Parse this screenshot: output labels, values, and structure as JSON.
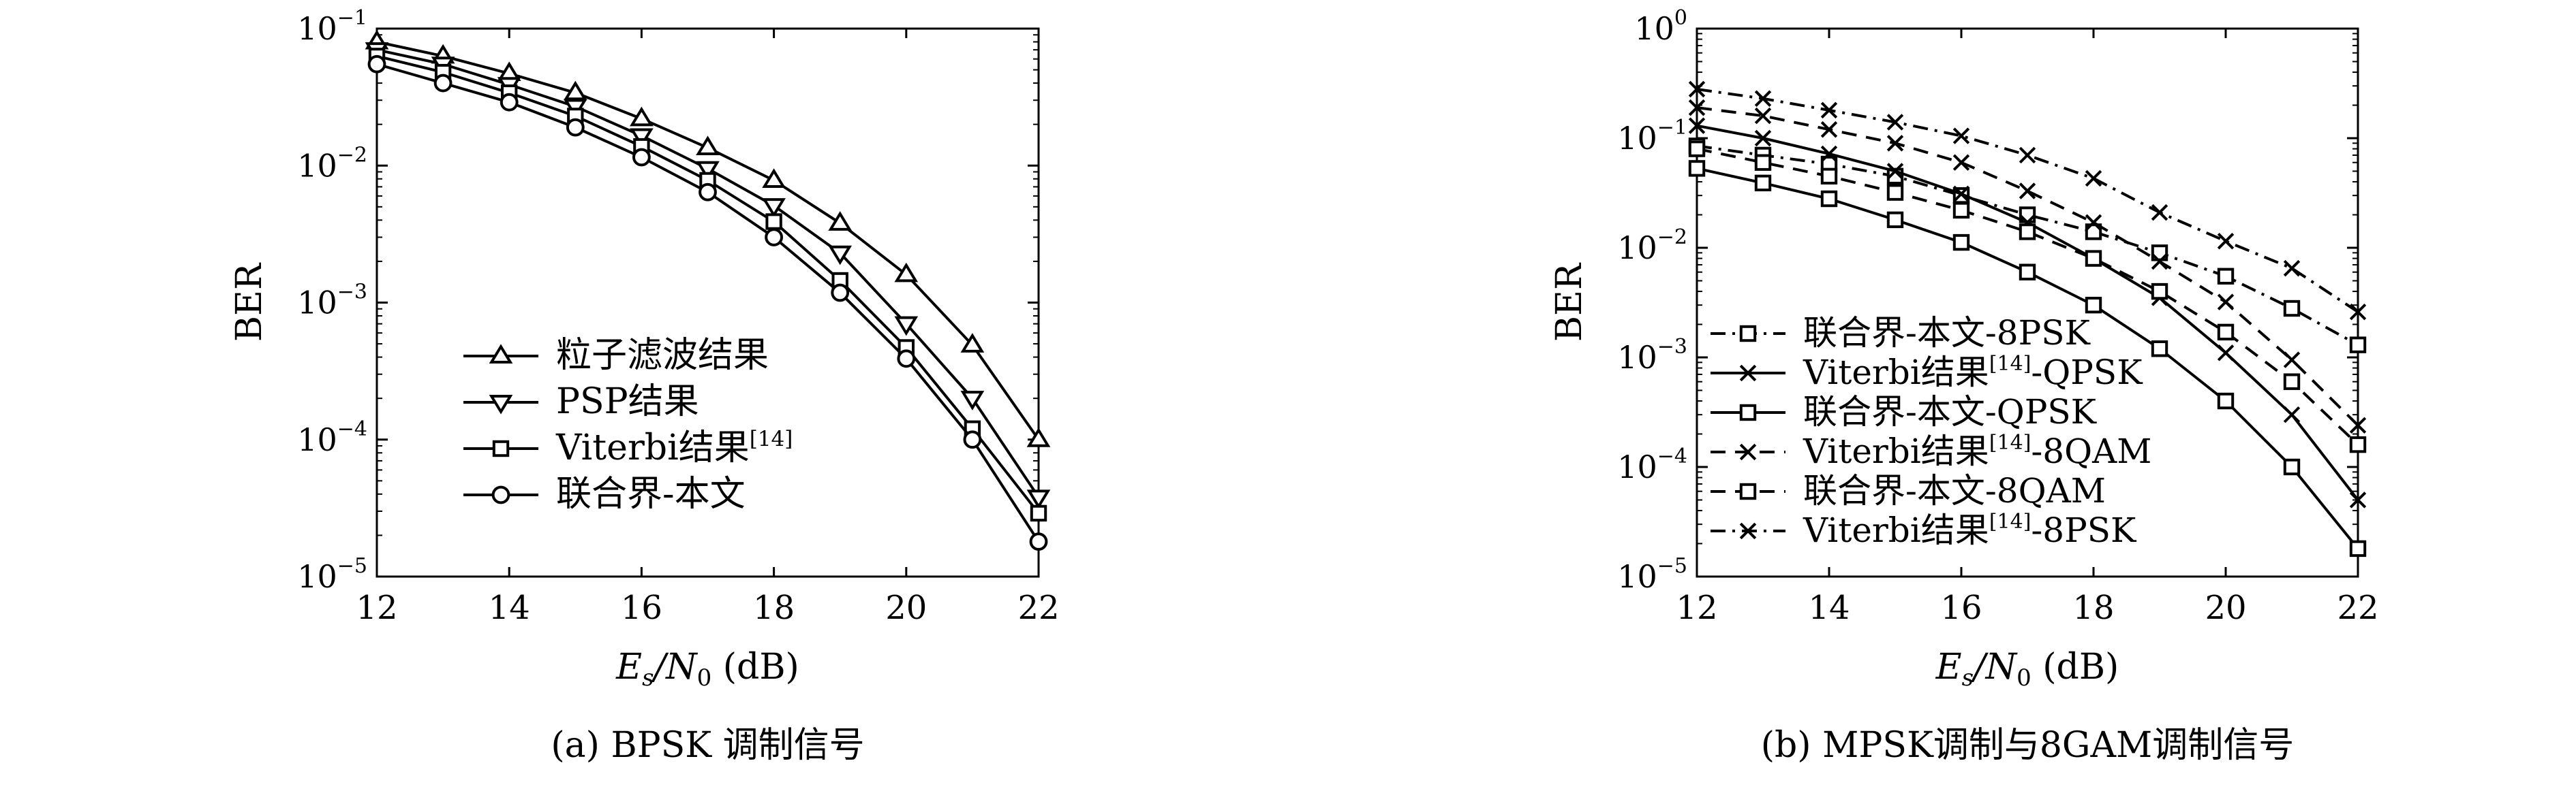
{
  "chart_data": [
    {
      "type": "line",
      "panel": "a",
      "caption": "(a) BPSK 调制信号",
      "xlabel_base": "E",
      "xlabel_sub1": "s",
      "xlabel_mid": "/N",
      "xlabel_sub2": "0",
      "xlabel_tail": " (dB)",
      "ylabel": "BER",
      "y_scale": "log",
      "xlim": [
        12,
        22
      ],
      "ylim": [
        1e-05,
        0.1
      ],
      "xticks": [
        12,
        14,
        16,
        18,
        20,
        22
      ],
      "yticks": [
        {
          "base": "10",
          "exp": "−1",
          "value": 0.1
        },
        {
          "base": "10",
          "exp": "−2",
          "value": 0.01
        },
        {
          "base": "10",
          "exp": "−3",
          "value": 0.001
        },
        {
          "base": "10",
          "exp": "−4",
          "value": 0.0001
        },
        {
          "base": "10",
          "exp": "−5",
          "value": 1e-05
        }
      ],
      "grid": false,
      "legend_position": "center",
      "x": [
        12,
        13,
        14,
        15,
        16,
        17,
        18,
        19,
        20,
        21,
        22
      ],
      "series": [
        {
          "name": "粒子滤波结果",
          "ref": "",
          "marker": "triangle-up",
          "dash": "solid",
          "values": [
            0.08,
            0.063,
            0.047,
            0.034,
            0.022,
            0.0135,
            0.0078,
            0.0038,
            0.0016,
            0.00049,
            0.0001
          ]
        },
        {
          "name": "PSP结果",
          "ref": "",
          "marker": "triangle-down",
          "dash": "solid",
          "values": [
            0.07,
            0.055,
            0.039,
            0.027,
            0.0165,
            0.0095,
            0.0051,
            0.0023,
            0.0007,
            0.0002,
            3.8e-05
          ]
        },
        {
          "name": "Viterbi结果",
          "ref": "[14]",
          "marker": "square",
          "dash": "solid",
          "values": [
            0.063,
            0.048,
            0.034,
            0.023,
            0.0138,
            0.0078,
            0.0039,
            0.00145,
            0.00047,
            0.00012,
            2.9e-05
          ]
        },
        {
          "name": "联合界-本文",
          "ref": "",
          "marker": "circle",
          "dash": "solid",
          "values": [
            0.055,
            0.04,
            0.029,
            0.019,
            0.0115,
            0.0064,
            0.003,
            0.00118,
            0.00039,
            0.0001,
            1.8e-05
          ]
        }
      ]
    },
    {
      "type": "line",
      "panel": "b",
      "caption": "(b) MPSK调制与8GAM调制信号",
      "xlabel_base": "E",
      "xlabel_sub1": "s",
      "xlabel_mid": "/N",
      "xlabel_sub2": "0",
      "xlabel_tail": " (dB)",
      "ylabel": "BER",
      "y_scale": "log",
      "xlim": [
        12,
        22
      ],
      "ylim": [
        1e-05,
        1
      ],
      "xticks": [
        12,
        14,
        16,
        18,
        20,
        22
      ],
      "yticks": [
        {
          "base": "10",
          "exp": "0",
          "value": 1
        },
        {
          "base": "10",
          "exp": "−1",
          "value": 0.1
        },
        {
          "base": "10",
          "exp": "−2",
          "value": 0.01
        },
        {
          "base": "10",
          "exp": "−3",
          "value": 0.001
        },
        {
          "base": "10",
          "exp": "−4",
          "value": 0.0001
        },
        {
          "base": "10",
          "exp": "−5",
          "value": 1e-05
        }
      ],
      "grid": false,
      "legend_position": "bottom-left",
      "x": [
        12,
        13,
        14,
        15,
        16,
        17,
        18,
        19,
        20,
        21,
        22
      ],
      "series": [
        {
          "name": "联合界-本文-8PSK",
          "ref": "",
          "marker": "square",
          "dash": "dashdot",
          "values": [
            0.085,
            0.07,
            0.058,
            0.045,
            0.03,
            0.02,
            0.014,
            0.009,
            0.0055,
            0.0028,
            0.0013
          ]
        },
        {
          "name": "Viterbi结果",
          "ref": "[14]",
          "suffix": "-QPSK",
          "marker": "x",
          "dash": "solid",
          "values": [
            0.13,
            0.1,
            0.072,
            0.05,
            0.031,
            0.017,
            0.008,
            0.0035,
            0.0011,
            0.0003,
            5e-05
          ]
        },
        {
          "name": "联合界-本文-QPSK",
          "ref": "",
          "marker": "square",
          "dash": "solid",
          "values": [
            0.053,
            0.039,
            0.028,
            0.018,
            0.0112,
            0.006,
            0.003,
            0.0012,
            0.0004,
            0.0001,
            1.8e-05
          ]
        },
        {
          "name": "Viterbi结果",
          "ref": "[14]",
          "suffix": "-8QAM",
          "marker": "x",
          "dash": "dashed",
          "values": [
            0.19,
            0.16,
            0.12,
            0.09,
            0.06,
            0.033,
            0.017,
            0.0075,
            0.0032,
            0.00095,
            0.00024
          ]
        },
        {
          "name": "联合界-本文-8QAM",
          "ref": "",
          "marker": "square",
          "dash": "dashed",
          "values": [
            0.08,
            0.06,
            0.045,
            0.032,
            0.022,
            0.014,
            0.008,
            0.004,
            0.0017,
            0.0006,
            0.00016
          ]
        },
        {
          "name": "Viterbi结果",
          "ref": "[14]",
          "suffix": "-8PSK",
          "marker": "x",
          "dash": "dashdot",
          "values": [
            0.28,
            0.23,
            0.18,
            0.14,
            0.105,
            0.07,
            0.043,
            0.021,
            0.0115,
            0.0065,
            0.0026
          ]
        }
      ]
    }
  ]
}
